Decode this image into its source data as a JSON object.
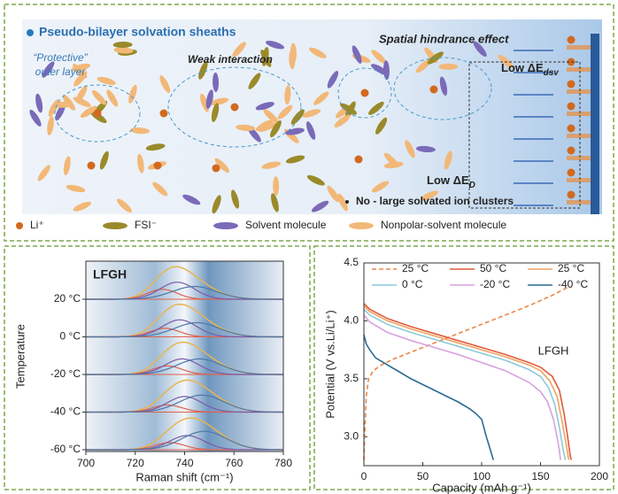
{
  "diagram": {
    "title": "Pseudo-bilayer solvation sheaths",
    "outer_layer": [
      "“Protective”",
      "outer layer"
    ],
    "weak": "Weak interaction",
    "hindrance": "Spatial hindrance effect",
    "dsv": {
      "text": "Low ΔE",
      "sub": "dsv"
    },
    "ed": {
      "text": "Low ΔE",
      "sub": "D"
    },
    "clusters": "No - large solvated ion clusters",
    "legend": [
      "Li⁺",
      "FSI⁻",
      "Solvent molecule",
      "Nonpolar-solvent molecule"
    ]
  },
  "chart_data": [
    {
      "type": "raman",
      "label": "LFGH",
      "xlabel": "Raman shift (cm⁻¹)",
      "ylabel": "Temperature",
      "xlim": [
        700,
        780
      ],
      "xticks": [
        700,
        720,
        740,
        760,
        780
      ],
      "envelope_color": "#e8b450",
      "component_colors": [
        "#e0604a",
        "#7a5aa8",
        "#4a78a8"
      ],
      "rows": [
        {
          "label": "20 °C",
          "peaks": [
            {
              "center": 731,
              "width": 6,
              "height": 0.35
            },
            {
              "center": 737,
              "width": 7,
              "height": 0.6
            },
            {
              "center": 744,
              "width": 9,
              "height": 0.45
            }
          ]
        },
        {
          "label": "0 °C",
          "peaks": [
            {
              "center": 732,
              "width": 6,
              "height": 0.3
            },
            {
              "center": 738,
              "width": 7,
              "height": 0.6
            },
            {
              "center": 745,
              "width": 9,
              "height": 0.5
            }
          ]
        },
        {
          "label": "-20 °C",
          "peaks": [
            {
              "center": 733,
              "width": 6,
              "height": 0.3
            },
            {
              "center": 739,
              "width": 7,
              "height": 0.55
            },
            {
              "center": 746,
              "width": 9,
              "height": 0.55
            }
          ]
        },
        {
          "label": "-40 °C",
          "peaks": [
            {
              "center": 733,
              "width": 6,
              "height": 0.25
            },
            {
              "center": 740,
              "width": 7,
              "height": 0.55
            },
            {
              "center": 747,
              "width": 9,
              "height": 0.6
            }
          ]
        },
        {
          "label": "-60 °C",
          "peaks": [
            {
              "center": 734,
              "width": 6,
              "height": 0.25
            },
            {
              "center": 741,
              "width": 7,
              "height": 0.5
            },
            {
              "center": 748,
              "width": 9,
              "height": 0.65
            }
          ]
        }
      ]
    },
    {
      "type": "line",
      "label": "LFGH",
      "xlabel": "Capacity (mAh g⁻¹)",
      "ylabel": "Potential (V vs.Li/Li⁺)",
      "xlim": [
        0,
        200
      ],
      "xticks": [
        0,
        50,
        100,
        150,
        200
      ],
      "ylim": [
        2.75,
        4.5
      ],
      "yticks": [
        {
          "value": 3.0,
          "label": "3.0"
        },
        3.5,
        {
          "value": 4.0,
          "label": "4.0"
        },
        4.5
      ],
      "series": [
        {
          "name": "25 °C",
          "color": "#e8874a",
          "dashed": true,
          "x": [
            0,
            1,
            2,
            4,
            8,
            15,
            25,
            40,
            60,
            80,
            100,
            120,
            140,
            160,
            175
          ],
          "values": [
            2.8,
            3.1,
            3.35,
            3.5,
            3.57,
            3.62,
            3.67,
            3.73,
            3.81,
            3.89,
            3.97,
            4.05,
            4.13,
            4.22,
            4.3
          ]
        },
        {
          "name": "50 °C",
          "color": "#e05a3a",
          "x": [
            0,
            5,
            20,
            40,
            60,
            80,
            100,
            120,
            140,
            150,
            160,
            166,
            170,
            173,
            175,
            176
          ],
          "values": [
            4.15,
            4.1,
            4.02,
            3.95,
            3.89,
            3.83,
            3.77,
            3.71,
            3.64,
            3.6,
            3.52,
            3.4,
            3.2,
            3.0,
            2.85,
            2.8
          ]
        },
        {
          "name": "25 °C",
          "color": "#f2a262",
          "x": [
            0,
            5,
            20,
            40,
            60,
            80,
            100,
            120,
            140,
            150,
            158,
            164,
            168,
            171,
            173,
            174
          ],
          "values": [
            4.13,
            4.08,
            4.0,
            3.93,
            3.87,
            3.81,
            3.75,
            3.69,
            3.62,
            3.57,
            3.48,
            3.35,
            3.15,
            2.98,
            2.86,
            2.8
          ]
        },
        {
          "name": "0 °C",
          "color": "#8ccbd8",
          "x": [
            0,
            5,
            20,
            40,
            60,
            80,
            100,
            120,
            140,
            150,
            157,
            162,
            166,
            169,
            171
          ],
          "values": [
            4.1,
            4.05,
            3.97,
            3.9,
            3.84,
            3.78,
            3.72,
            3.66,
            3.58,
            3.52,
            3.42,
            3.28,
            3.08,
            2.9,
            2.8
          ]
        },
        {
          "name": "-20 °C",
          "color": "#d8a0e0",
          "x": [
            0,
            5,
            20,
            40,
            60,
            80,
            100,
            120,
            140,
            150,
            156,
            161,
            164,
            166,
            167
          ],
          "values": [
            4.05,
            3.99,
            3.9,
            3.83,
            3.77,
            3.71,
            3.64,
            3.57,
            3.47,
            3.39,
            3.3,
            3.15,
            3.0,
            2.88,
            2.8
          ]
        },
        {
          "name": "-40 °C",
          "color": "#2a6a90",
          "x": [
            0,
            2,
            5,
            10,
            20,
            30,
            40,
            50,
            60,
            70,
            80,
            90,
            95,
            100,
            104,
            107,
            109,
            110
          ],
          "values": [
            3.88,
            3.8,
            3.75,
            3.68,
            3.62,
            3.56,
            3.5,
            3.45,
            3.4,
            3.35,
            3.3,
            3.24,
            3.2,
            3.15,
            3.0,
            2.9,
            2.83,
            2.8
          ]
        }
      ]
    }
  ]
}
